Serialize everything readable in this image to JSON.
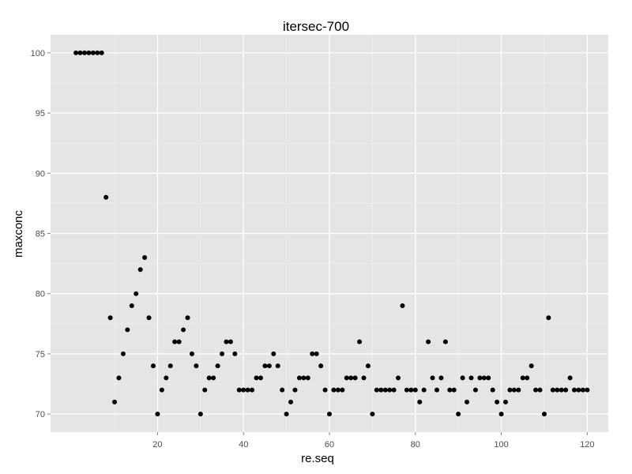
{
  "chart_data": {
    "type": "scatter",
    "title": "itersec-700",
    "xlabel": "re.seq",
    "ylabel": "maxconc",
    "xlim": [
      -4.9,
      124.9
    ],
    "ylim": [
      68.5,
      101.5
    ],
    "x_ticks": [
      20,
      40,
      60,
      80,
      100,
      120
    ],
    "y_ticks": [
      70,
      75,
      80,
      85,
      90,
      95,
      100
    ],
    "grid": true,
    "background": "#e5e5e5",
    "grid_color": "#ffffff",
    "point_color": "#000000",
    "points": [
      [
        1,
        100
      ],
      [
        2,
        100
      ],
      [
        3,
        100
      ],
      [
        4,
        100
      ],
      [
        5,
        100
      ],
      [
        6,
        100
      ],
      [
        7,
        100
      ],
      [
        8,
        88
      ],
      [
        9,
        78
      ],
      [
        10,
        71
      ],
      [
        11,
        73
      ],
      [
        12,
        75
      ],
      [
        13,
        77
      ],
      [
        14,
        79
      ],
      [
        15,
        80
      ],
      [
        16,
        82
      ],
      [
        17,
        83
      ],
      [
        18,
        78
      ],
      [
        19,
        74
      ],
      [
        20,
        70
      ],
      [
        21,
        72
      ],
      [
        22,
        73
      ],
      [
        23,
        74
      ],
      [
        24,
        76
      ],
      [
        25,
        76
      ],
      [
        26,
        77
      ],
      [
        27,
        78
      ],
      [
        28,
        75
      ],
      [
        29,
        74
      ],
      [
        30,
        70
      ],
      [
        31,
        72
      ],
      [
        32,
        73
      ],
      [
        33,
        73
      ],
      [
        34,
        74
      ],
      [
        35,
        75
      ],
      [
        36,
        76
      ],
      [
        37,
        76
      ],
      [
        38,
        75
      ],
      [
        39,
        72
      ],
      [
        40,
        72
      ],
      [
        41,
        72
      ],
      [
        42,
        72
      ],
      [
        43,
        73
      ],
      [
        44,
        73
      ],
      [
        45,
        74
      ],
      [
        46,
        74
      ],
      [
        47,
        75
      ],
      [
        48,
        74
      ],
      [
        49,
        72
      ],
      [
        50,
        70
      ],
      [
        51,
        71
      ],
      [
        52,
        72
      ],
      [
        53,
        73
      ],
      [
        54,
        73
      ],
      [
        55,
        73
      ],
      [
        56,
        75
      ],
      [
        57,
        75
      ],
      [
        58,
        74
      ],
      [
        59,
        72
      ],
      [
        60,
        70
      ],
      [
        61,
        72
      ],
      [
        62,
        72
      ],
      [
        63,
        72
      ],
      [
        64,
        73
      ],
      [
        65,
        73
      ],
      [
        66,
        73
      ],
      [
        67,
        76
      ],
      [
        68,
        73
      ],
      [
        69,
        74
      ],
      [
        70,
        70
      ],
      [
        71,
        72
      ],
      [
        72,
        72
      ],
      [
        73,
        72
      ],
      [
        74,
        72
      ],
      [
        75,
        72
      ],
      [
        76,
        73
      ],
      [
        77,
        79
      ],
      [
        78,
        72
      ],
      [
        79,
        72
      ],
      [
        80,
        72
      ],
      [
        81,
        71
      ],
      [
        82,
        72
      ],
      [
        83,
        76
      ],
      [
        84,
        73
      ],
      [
        85,
        72
      ],
      [
        86,
        73
      ],
      [
        87,
        76
      ],
      [
        88,
        72
      ],
      [
        89,
        72
      ],
      [
        90,
        70
      ],
      [
        91,
        73
      ],
      [
        92,
        71
      ],
      [
        93,
        73
      ],
      [
        94,
        72
      ],
      [
        95,
        73
      ],
      [
        96,
        73
      ],
      [
        97,
        73
      ],
      [
        98,
        72
      ],
      [
        99,
        71
      ],
      [
        100,
        70
      ],
      [
        101,
        71
      ],
      [
        102,
        72
      ],
      [
        103,
        72
      ],
      [
        104,
        72
      ],
      [
        105,
        73
      ],
      [
        106,
        73
      ],
      [
        107,
        74
      ],
      [
        108,
        72
      ],
      [
        109,
        72
      ],
      [
        110,
        70
      ],
      [
        111,
        78
      ],
      [
        112,
        72
      ],
      [
        113,
        72
      ],
      [
        114,
        72
      ],
      [
        115,
        72
      ],
      [
        116,
        73
      ],
      [
        117,
        72
      ],
      [
        118,
        72
      ],
      [
        119,
        72
      ],
      [
        120,
        72
      ]
    ]
  }
}
